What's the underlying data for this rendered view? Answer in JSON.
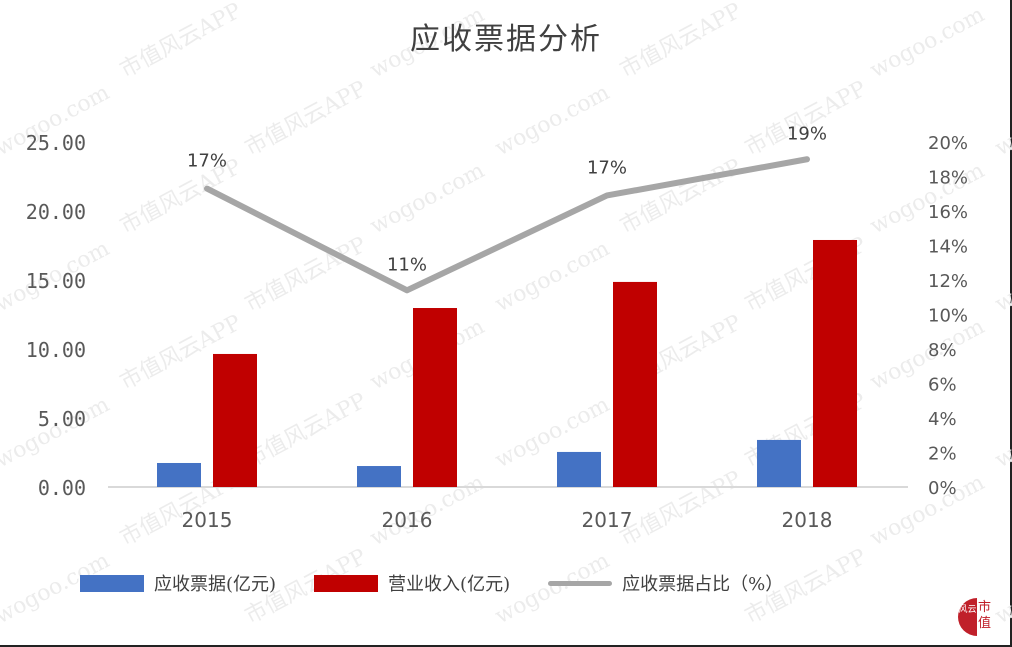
{
  "chart_data": {
    "type": "bar",
    "title": "应收票据分析",
    "categories": [
      "2015",
      "2016",
      "2017",
      "2018"
    ],
    "series": [
      {
        "name": "应收票据(亿元)",
        "type": "bar",
        "axis": "left",
        "color": "#4472C4",
        "values": [
          1.74,
          1.52,
          2.54,
          3.41
        ]
      },
      {
        "name": "营业收入(亿元)",
        "type": "bar",
        "axis": "left",
        "color": "#C00000",
        "values": [
          9.64,
          12.97,
          14.86,
          17.9
        ]
      },
      {
        "name": "应收票据占比（%）",
        "type": "line",
        "axis": "right",
        "color": "#A6A6A6",
        "values": [
          17.3,
          11.4,
          16.9,
          19.0
        ],
        "data_labels": [
          "17%",
          "11%",
          "17%",
          "19%"
        ]
      }
    ],
    "left_axis": {
      "ylim": [
        0,
        25
      ],
      "ticks": [
        "0.00",
        "5.00",
        "10.00",
        "15.00",
        "20.00",
        "25.00"
      ]
    },
    "right_axis": {
      "ylim": [
        0,
        20
      ],
      "ticks": [
        "0%",
        "2%",
        "4%",
        "6%",
        "8%",
        "10%",
        "12%",
        "14%",
        "16%",
        "18%",
        "20%"
      ]
    },
    "xlabel": "",
    "ylabel": "",
    "grid": false,
    "legend_position": "bottom"
  },
  "title": "应收票据分析",
  "legend": [
    {
      "label": "应收票据(亿元)",
      "color": "#4472C4"
    },
    {
      "label": "营业收入(亿元)",
      "color": "#C00000"
    },
    {
      "label": "应收票据占比（%）",
      "color": "#A6A6A6"
    }
  ],
  "watermark": {
    "text_a": "市值风云APP",
    "text_b": "wogoo.com"
  },
  "logo": {
    "left": "风云",
    "right_top": "市",
    "right_bottom": "值"
  }
}
